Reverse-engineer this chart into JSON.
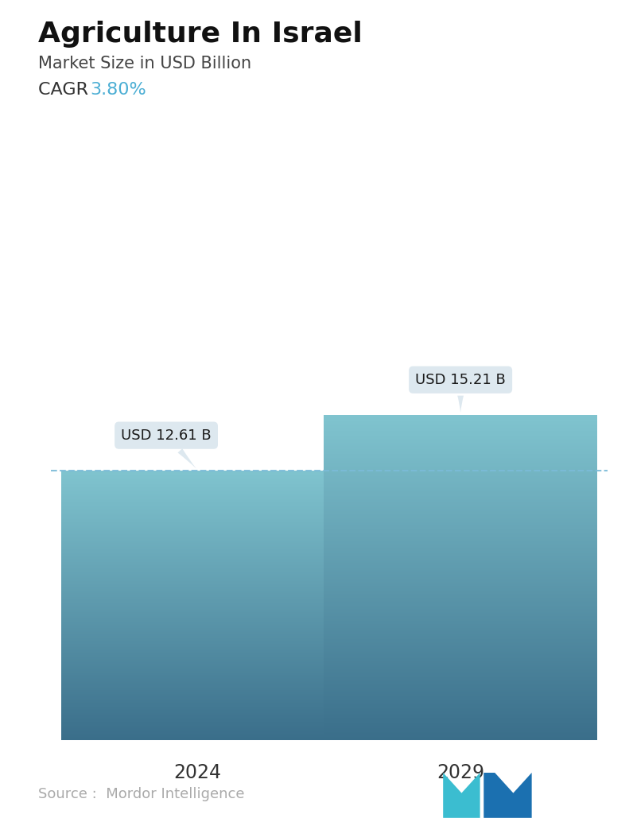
{
  "title": "Agriculture In Israel",
  "subtitle": "Market Size in USD Billion",
  "cagr_label": "CAGR  ",
  "cagr_value": "3.80%",
  "cagr_color": "#4BAED4",
  "categories": [
    "2024",
    "2029"
  ],
  "values": [
    12.61,
    15.21
  ],
  "bar_labels": [
    "USD 12.61 B",
    "USD 15.21 B"
  ],
  "bar_top_color": "#80C4CF",
  "bar_bottom_color": "#3A6E8A",
  "dashed_line_color": "#7BBBD8",
  "callout_bg_color": "#DDE8EF",
  "callout_text_color": "#1a1a1a",
  "source_text": "Source :  Mordor Intelligence",
  "source_color": "#aaaaaa",
  "background_color": "#ffffff",
  "title_fontsize": 26,
  "subtitle_fontsize": 15,
  "cagr_fontsize": 16,
  "bar_label_fontsize": 13,
  "axis_label_fontsize": 17,
  "source_fontsize": 13,
  "ylim": [
    0,
    20
  ],
  "bar_width": 0.52,
  "bar_positions": [
    0.28,
    0.78
  ],
  "xlim": [
    0,
    1.06
  ]
}
